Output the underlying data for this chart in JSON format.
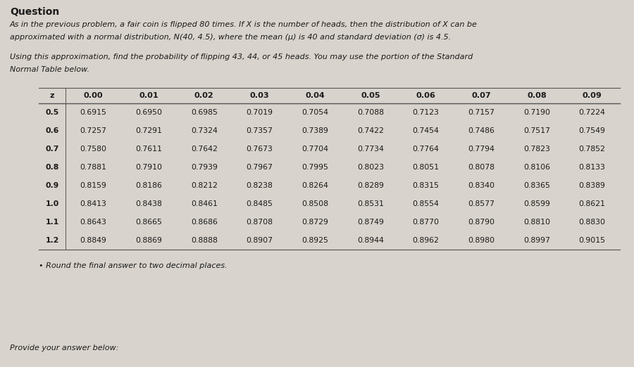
{
  "title": "Question",
  "para1_line1": "As in the previous problem, a fair coin is flipped 80 times. If X is the number of heads, then the distribution of X can be",
  "para1_line2": "approximated with a normal distribution, N(40, 4.5), where the mean (μ) is 40 and standard deviation (σ) is 4.5.",
  "para2_line1": "Using this approximation, find the probability of flipping 43, 44, or 45 heads. You may use the portion of the Standard",
  "para2_line2": "Normal Table below.",
  "bullet": "• Round the final answer to two decimal places.",
  "footer": "Provide your answer below:",
  "col_headers": [
    "z",
    "0.00",
    "0.01",
    "0.02",
    "0.03",
    "0.04",
    "0.05",
    "0.06",
    "0.07",
    "0.08",
    "0.09"
  ],
  "rows": [
    [
      "0.5",
      "0.6915",
      "0.6950",
      "0.6985",
      "0.7019",
      "0.7054",
      "0.7088",
      "0.7123",
      "0.7157",
      "0.7190",
      "0.7224"
    ],
    [
      "0.6",
      "0.7257",
      "0.7291",
      "0.7324",
      "0.7357",
      "0.7389",
      "0.7422",
      "0.7454",
      "0.7486",
      "0.7517",
      "0.7549"
    ],
    [
      "0.7",
      "0.7580",
      "0.7611",
      "0.7642",
      "0.7673",
      "0.7704",
      "0.7734",
      "0.7764",
      "0.7794",
      "0.7823",
      "0.7852"
    ],
    [
      "0.8",
      "0.7881",
      "0.7910",
      "0.7939",
      "0.7967",
      "0.7995",
      "0.8023",
      "0.8051",
      "0.8078",
      "0.8106",
      "0.8133"
    ],
    [
      "0.9",
      "0.8159",
      "0.8186",
      "0.8212",
      "0.8238",
      "0.8264",
      "0.8289",
      "0.8315",
      "0.8340",
      "0.8365",
      "0.8389"
    ],
    [
      "1.0",
      "0.8413",
      "0.8438",
      "0.8461",
      "0.8485",
      "0.8508",
      "0.8531",
      "0.8554",
      "0.8577",
      "0.8599",
      "0.8621"
    ],
    [
      "1.1",
      "0.8643",
      "0.8665",
      "0.8686",
      "0.8708",
      "0.8729",
      "0.8749",
      "0.8770",
      "0.8790",
      "0.8810",
      "0.8830"
    ],
    [
      "1.2",
      "0.8849",
      "0.8869",
      "0.8888",
      "0.8907",
      "0.8925",
      "0.8944",
      "0.8962",
      "0.8980",
      "0.8997",
      "0.9015"
    ]
  ],
  "bg_color": "#d8d3cc",
  "text_color": "#1a1a1a",
  "table_line_color": "#555555",
  "title_fontsize": 10,
  "body_fontsize": 8.0,
  "table_fontsize": 7.8
}
